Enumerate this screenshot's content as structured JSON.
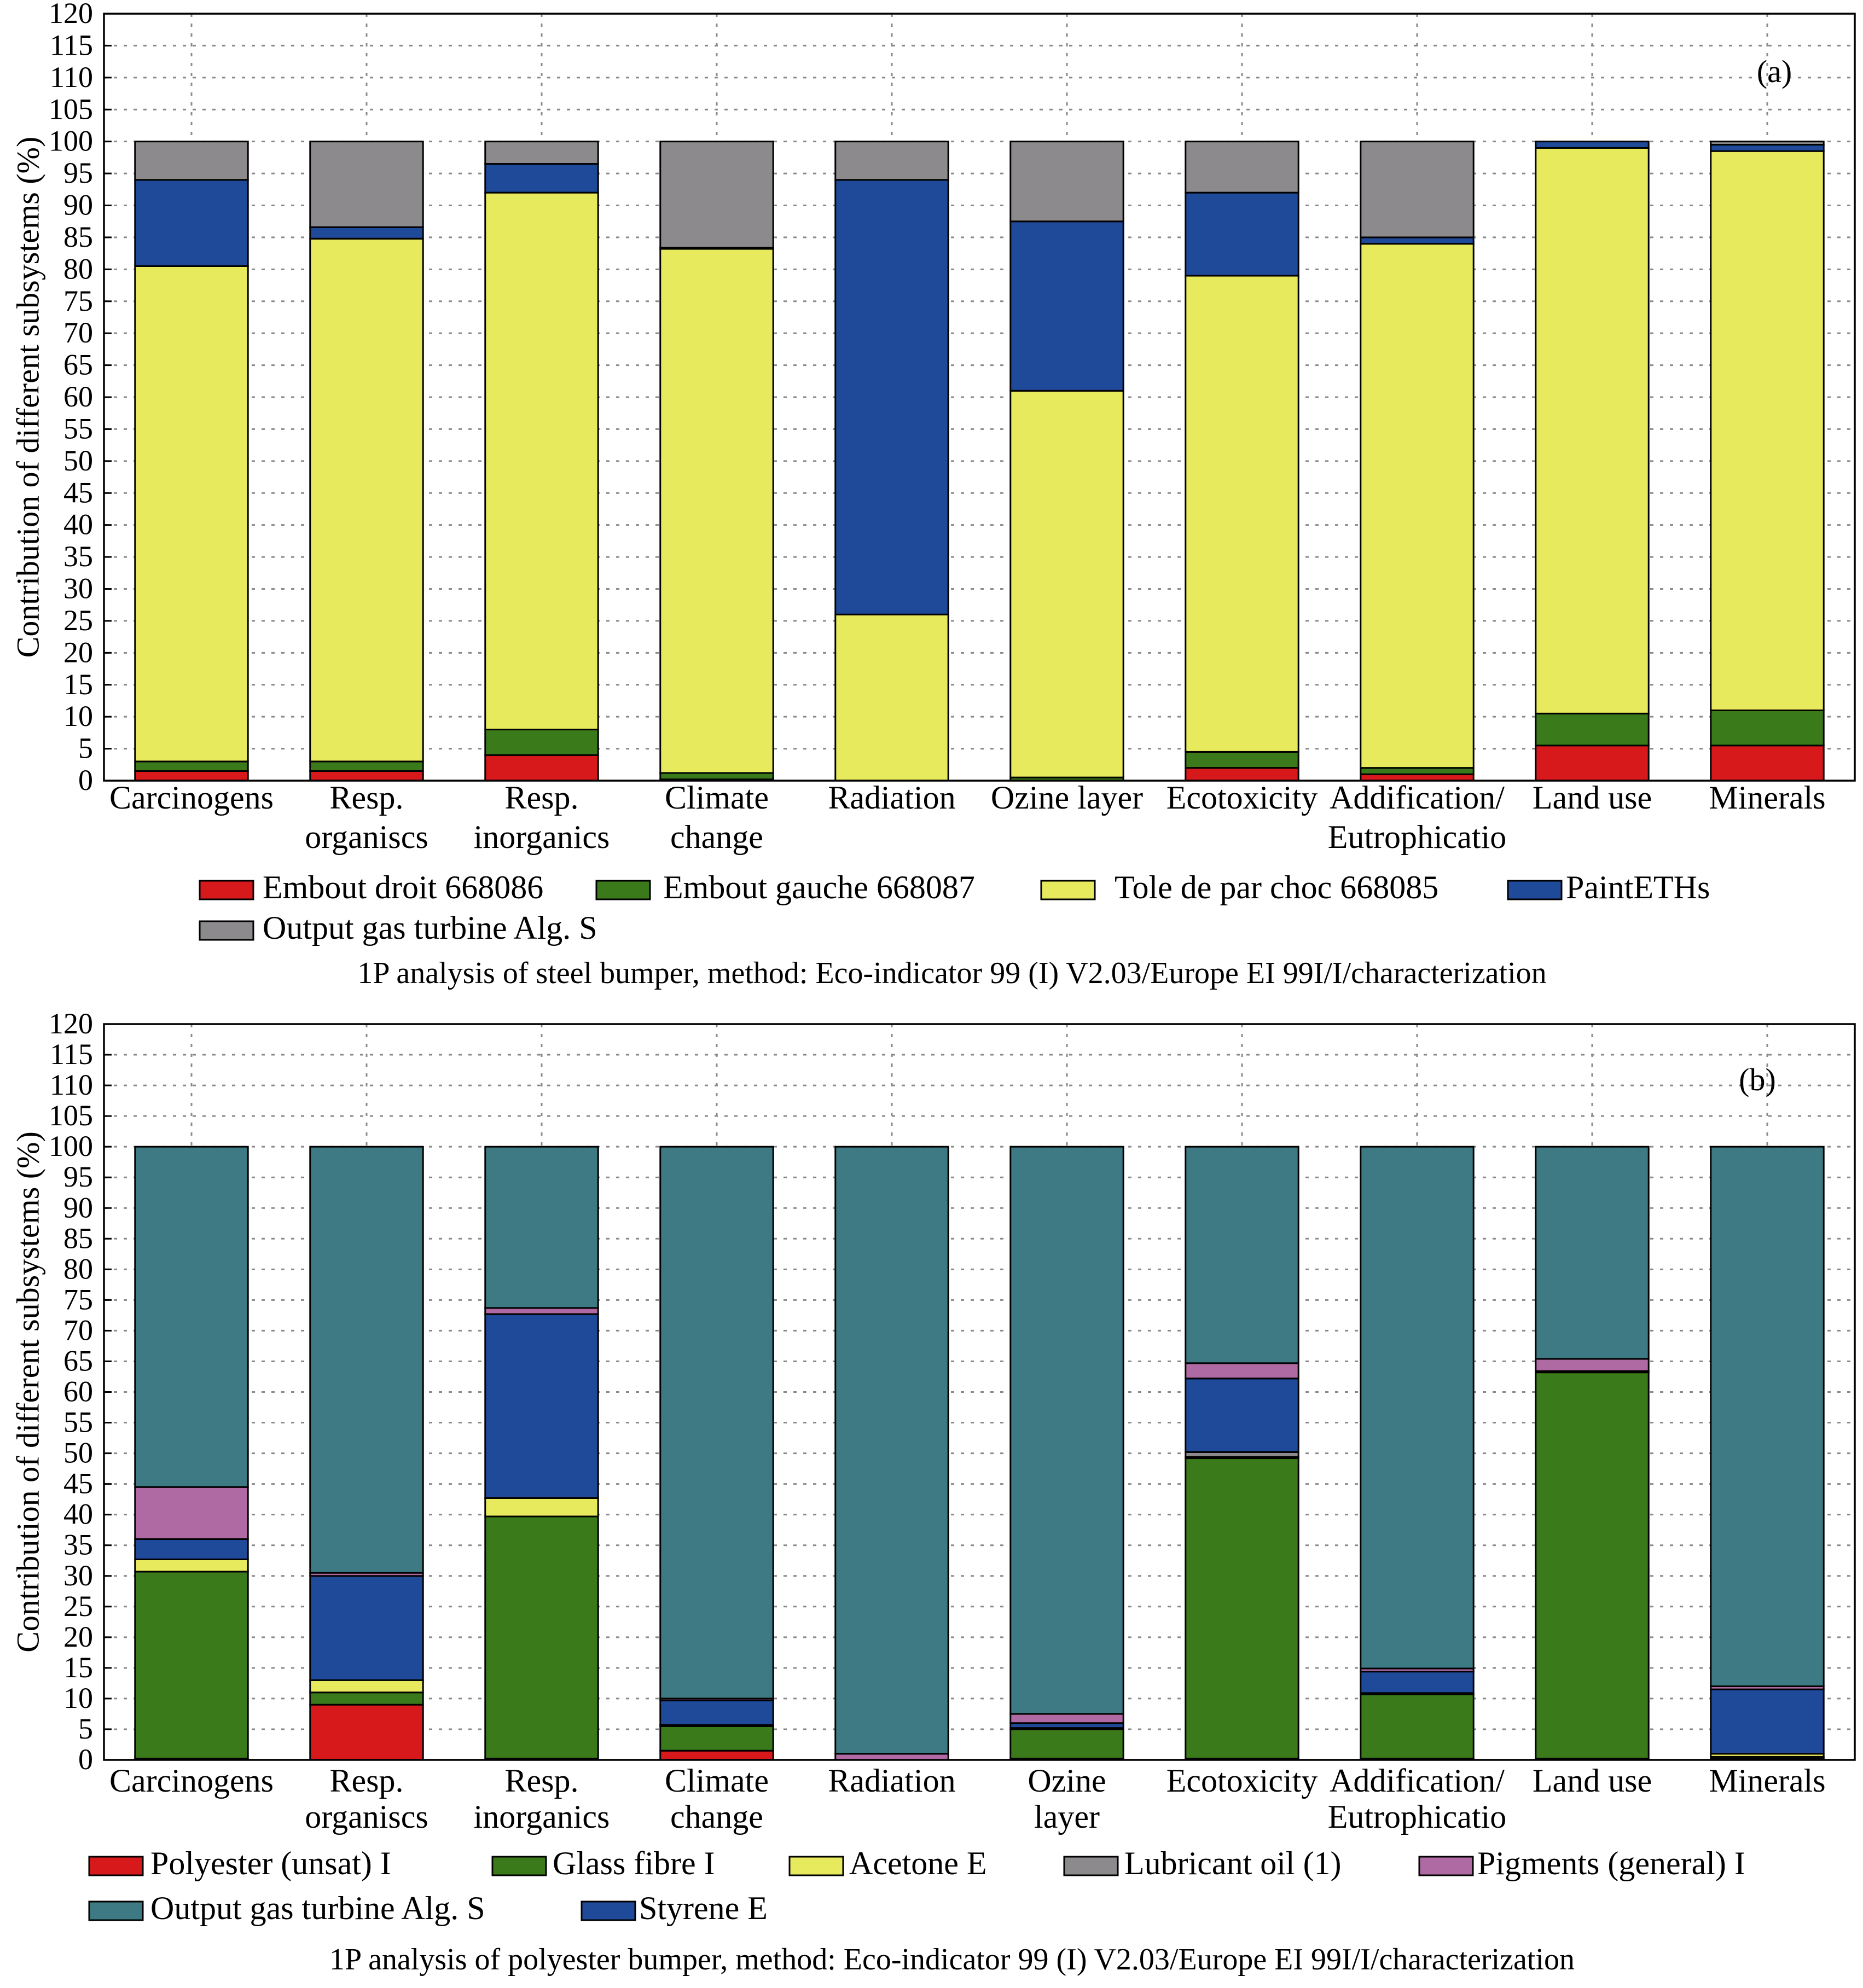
{
  "chart_data": [
    {
      "id": "a",
      "type": "bar",
      "stacked": true,
      "panel_label": "(a)",
      "ylabel": "Contribution of different subsystems (%)",
      "ylim": [
        0,
        120
      ],
      "ytick_step": 5,
      "grid": true,
      "categories": [
        [
          "Carcinogens"
        ],
        [
          "Resp.",
          "organiscs"
        ],
        [
          "Resp.",
          "inorganics"
        ],
        [
          "Climate",
          "change"
        ],
        [
          "Radiation"
        ],
        [
          "Ozine layer"
        ],
        [
          "Ecotoxicity"
        ],
        [
          "Addification/",
          "Eutrophicatio"
        ],
        [
          "Land use"
        ],
        [
          "Minerals"
        ]
      ],
      "series": [
        {
          "name": "Embout droit 668086",
          "color": "#d7191c",
          "values": [
            1.5,
            1.5,
            4,
            0.2,
            0,
            0,
            2,
            1,
            5.5,
            5.5
          ]
        },
        {
          "name": "Embout gauche 668087",
          "color": "#3a7a1a",
          "values": [
            1.5,
            1.5,
            4,
            1,
            0,
            0.5,
            2.5,
            1,
            5,
            5.5
          ]
        },
        {
          "name": "Tole de par choc 668085",
          "color": "#e8ea5e",
          "values": [
            77.5,
            81.8,
            84,
            82,
            26,
            60.5,
            74.5,
            82,
            88.5,
            87.5
          ]
        },
        {
          "name": "PaintETHs",
          "color": "#1f4a9a",
          "values": [
            13.5,
            1.8,
            4.5,
            0.2,
            68,
            26.5,
            13,
            1,
            1,
            1
          ]
        },
        {
          "name": "Output gas turbine Alg. S",
          "color": "#8c8a8c",
          "values": [
            6,
            13.4,
            3.5,
            16.6,
            6,
            12.5,
            8,
            15,
            0,
            0.5
          ]
        }
      ],
      "legend": {
        "placement": "bottom",
        "rows": [
          [
            0,
            1,
            2,
            3
          ],
          [
            4
          ]
        ]
      },
      "caption": "1P analysis of steel bumper, method: Eco-indicator 99 (I) V2.03/Europe EI 99I/I/characterization"
    },
    {
      "id": "b",
      "type": "bar",
      "stacked": true,
      "panel_label": "(b)",
      "ylabel": "Contribution of different subsystems (%)",
      "ylim": [
        0,
        120
      ],
      "ytick_step": 5,
      "grid": true,
      "categories": [
        [
          "Carcinogens"
        ],
        [
          "Resp.",
          "organiscs"
        ],
        [
          "Resp.",
          "inorganics"
        ],
        [
          "Climate",
          "change"
        ],
        [
          "Radiation"
        ],
        [
          "Ozine",
          "layer"
        ],
        [
          "Ecotoxicity"
        ],
        [
          "Addification/",
          "Eutrophicatio"
        ],
        [
          "Land use"
        ],
        [
          "Minerals"
        ]
      ],
      "series": [
        {
          "name": "Polyester (unsat) I",
          "color": "#d7191c",
          "values": [
            0.2,
            9,
            0.2,
            1.5,
            0,
            0.2,
            0.2,
            0.2,
            0.2,
            0.2
          ]
        },
        {
          "name": "Glass fibre I",
          "color": "#3a7a1a",
          "values": [
            30.5,
            2,
            39.5,
            4,
            0,
            4.8,
            49,
            10.5,
            63,
            0.3
          ]
        },
        {
          "name": "Acetone E",
          "color": "#e8ea5e",
          "values": [
            2,
            2,
            3,
            0.2,
            0,
            0.2,
            0.2,
            0.2,
            0.2,
            0.5
          ]
        },
        {
          "name": "Lubricant oil (1)",
          "color": "#8c8a8c",
          "values": [
            0,
            0,
            0,
            0,
            0,
            0,
            0.8,
            0,
            0,
            0
          ]
        },
        {
          "name": "Styrene E",
          "color": "#1f4a9a",
          "values": [
            3.3,
            17,
            30,
            4,
            0,
            0.8,
            12,
            3.5,
            0,
            10.5
          ]
        },
        {
          "name": "Pigments (general) I",
          "color": "#b06aa3",
          "values": [
            8.5,
            0.5,
            1,
            0.3,
            1,
            1.5,
            2.5,
            0.5,
            2,
            0.5
          ]
        },
        {
          "name": "Output gas turbine Alg. S",
          "color": "#3d7a83",
          "values": [
            55.5,
            69.5,
            26.3,
            90,
            99,
            92.5,
            35.3,
            85.1,
            34.6,
            88
          ]
        }
      ],
      "legend": {
        "placement": "bottom",
        "rows": [
          [
            0,
            1,
            2,
            3,
            5
          ],
          [
            6,
            4
          ]
        ]
      },
      "caption": "1P analysis of polyester bumper, method: Eco-indicator 99 (I) V2.03/Europe EI 99I/I/characterization"
    }
  ]
}
